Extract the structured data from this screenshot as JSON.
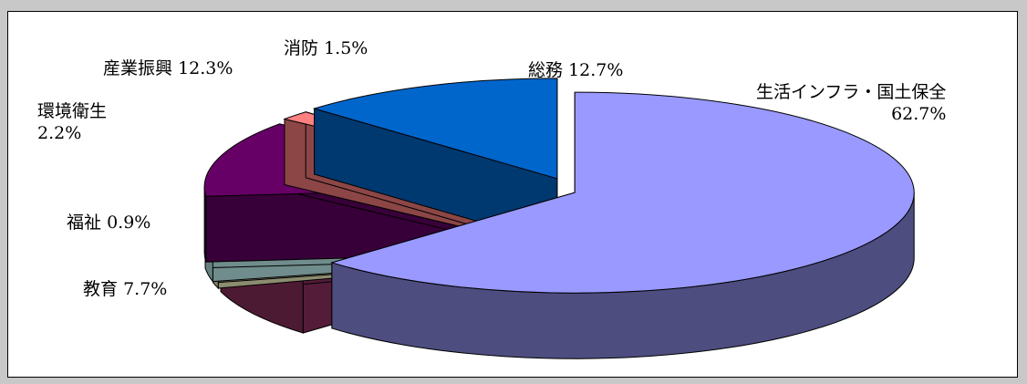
{
  "chart_data": {
    "type": "pie",
    "style": "3d-exploded",
    "title": "",
    "legend": "none",
    "slices": [
      {
        "label": "生活インフラ・国土保全",
        "pct_text": "62.7%",
        "value": 62.7,
        "color": "#9999ff"
      },
      {
        "label": "教育",
        "pct_text": "7.7%",
        "value": 7.7,
        "color": "#993366"
      },
      {
        "label": "福祉",
        "pct_text": "0.9%",
        "value": 0.9,
        "color": "#ffffcc"
      },
      {
        "label": "環境衛生",
        "pct_text": "2.2%",
        "value": 2.2,
        "color": "#ccffff"
      },
      {
        "label": "産業振興",
        "pct_text": "12.3%",
        "value": 12.3,
        "color": "#660066"
      },
      {
        "label": "消防",
        "pct_text": "1.5%",
        "value": 1.5,
        "color": "#ff8080"
      },
      {
        "label": "総務",
        "pct_text": "12.7%",
        "value": 12.7,
        "color": "#0066cc"
      }
    ]
  }
}
